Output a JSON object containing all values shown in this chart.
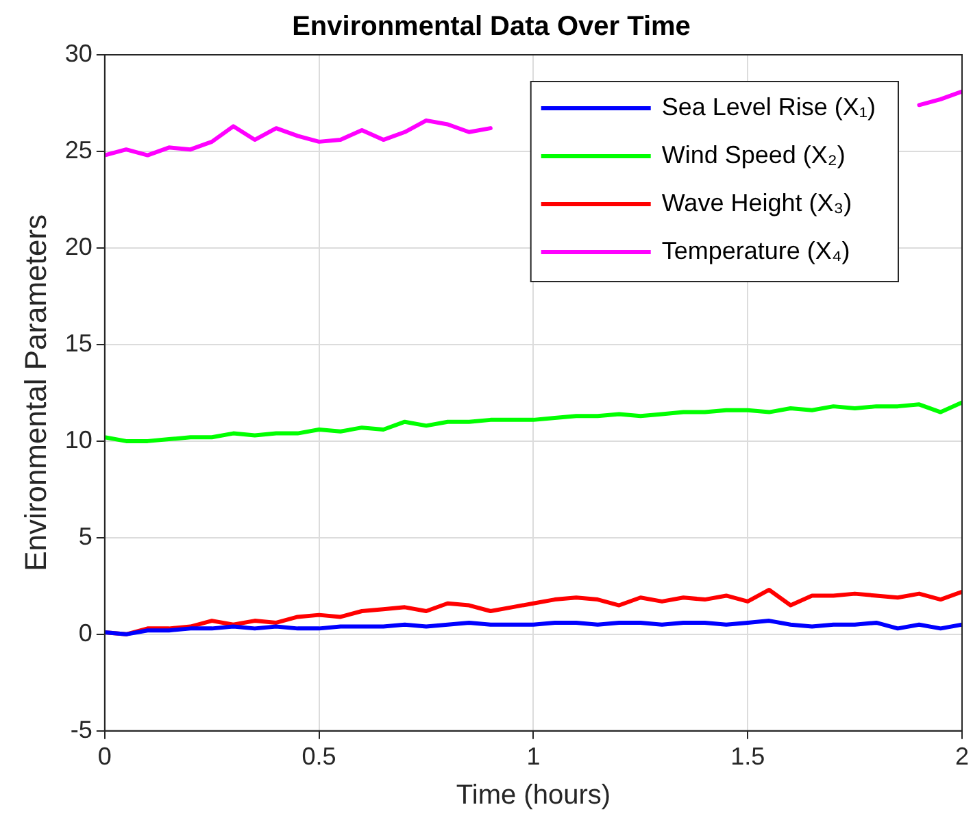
{
  "chart_data": {
    "type": "line",
    "title": "Environmental Data Over Time",
    "xlabel": "Time (hours)",
    "ylabel": "Environmental Parameters",
    "x": [
      0,
      0.05,
      0.1,
      0.15,
      0.2,
      0.25,
      0.3,
      0.35,
      0.4,
      0.45,
      0.5,
      0.55,
      0.6,
      0.65,
      0.7,
      0.75,
      0.8,
      0.85,
      0.9,
      0.95,
      1,
      1.05,
      1.1,
      1.15,
      1.2,
      1.25,
      1.3,
      1.35,
      1.4,
      1.45,
      1.5,
      1.55,
      1.6,
      1.65,
      1.7,
      1.75,
      1.8,
      1.85,
      1.9,
      1.95,
      2
    ],
    "series": [
      {
        "name": "Sea Level Rise (X₁)",
        "color": "#0000ff",
        "values": [
          0.1,
          0,
          0.2,
          0.2,
          0.3,
          0.3,
          0.4,
          0.3,
          0.4,
          0.3,
          0.3,
          0.4,
          0.4,
          0.4,
          0.5,
          0.4,
          0.5,
          0.6,
          0.5,
          0.5,
          0.5,
          0.6,
          0.6,
          0.5,
          0.6,
          0.6,
          0.5,
          0.6,
          0.6,
          0.5,
          0.6,
          0.7,
          0.5,
          0.4,
          0.5,
          0.5,
          0.6,
          0.3,
          0.5,
          0.3,
          0.5
        ]
      },
      {
        "name": "Wind Speed (X₂)",
        "color": "#00ff00",
        "values": [
          10.2,
          10,
          10,
          10.1,
          10.2,
          10.2,
          10.4,
          10.3,
          10.4,
          10.4,
          10.6,
          10.5,
          10.7,
          10.6,
          11,
          10.8,
          11,
          11,
          11.1,
          11.1,
          11.1,
          11.2,
          11.3,
          11.3,
          11.4,
          11.3,
          11.4,
          11.5,
          11.5,
          11.6,
          11.6,
          11.5,
          11.7,
          11.6,
          11.8,
          11.7,
          11.8,
          11.8,
          11.9,
          11.5,
          12
        ]
      },
      {
        "name": "Wave Height (X₃)",
        "color": "#ff0000",
        "values": [
          0.1,
          0,
          0.3,
          0.3,
          0.4,
          0.7,
          0.5,
          0.7,
          0.6,
          0.9,
          1,
          0.9,
          1.2,
          1.3,
          1.4,
          1.2,
          1.6,
          1.5,
          1.2,
          1.4,
          1.6,
          1.8,
          1.9,
          1.8,
          1.5,
          1.9,
          1.7,
          1.9,
          1.8,
          2,
          1.7,
          2.3,
          1.5,
          2,
          2,
          2.1,
          2,
          1.9,
          2.1,
          1.8,
          2.2
        ]
      },
      {
        "name": "Temperature (X₄)",
        "color": "#ff00ff",
        "values": [
          24.8,
          25.1,
          24.8,
          25.2,
          25.1,
          25.5,
          26.3,
          25.6,
          26.2,
          25.8,
          25.5,
          25.6,
          26.1,
          25.6,
          26,
          26.6,
          26.4,
          26,
          26.2,
          null,
          null,
          null,
          null,
          null,
          null,
          null,
          null,
          null,
          null,
          null,
          null,
          null,
          null,
          null,
          null,
          null,
          null,
          null,
          27.4,
          27.7,
          28.1
        ]
      }
    ],
    "xlim": [
      0,
      2
    ],
    "xticks": [
      0,
      0.5,
      1,
      1.5,
      2
    ],
    "ylim": [
      -5,
      30
    ],
    "yticks": [
      -5,
      0,
      5,
      10,
      15,
      20,
      25,
      30
    ],
    "grid": true,
    "legend": "top right",
    "marker": "none",
    "line_style": "solid"
  }
}
